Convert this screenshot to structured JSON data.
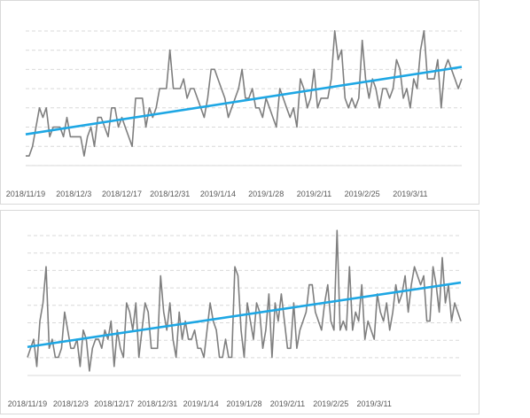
{
  "chart_data": [
    {
      "type": "line",
      "x_tick_labels": [
        "2018/11/19",
        "2018/12/3",
        "2018/12/17",
        "2018/12/31",
        "2019/1/14",
        "2019/1/28",
        "2019/2/11",
        "2019/2/25",
        "2019/3/11"
      ],
      "x_tick_days": [
        0,
        14,
        28,
        42,
        56,
        70,
        84,
        98,
        112
      ],
      "ylim": [
        0,
        16
      ],
      "grid": true,
      "series": [
        {
          "role": "data",
          "color": "#7f7f7f",
          "values": [
            1,
            1,
            2,
            4,
            6,
            5,
            6,
            3,
            4,
            4,
            4,
            3,
            5,
            3,
            3,
            3,
            3,
            1,
            3,
            4,
            2,
            5,
            5,
            4,
            3,
            6,
            6,
            4,
            5,
            4,
            3,
            2,
            7,
            7,
            7,
            4,
            6,
            5,
            6,
            8,
            8,
            8,
            12,
            8,
            8,
            8,
            9,
            7,
            8,
            8,
            7,
            6,
            5,
            7,
            10,
            10,
            9,
            8,
            7,
            5,
            6,
            7,
            8,
            10,
            7,
            7,
            8,
            6,
            6,
            5,
            7,
            6,
            5,
            4,
            8,
            7,
            6,
            5,
            6,
            4,
            9,
            8,
            6,
            7,
            10,
            6,
            7,
            7,
            7,
            9,
            14,
            11,
            12,
            7,
            6,
            7,
            6,
            7,
            13,
            9,
            7,
            9,
            8,
            6,
            8,
            8,
            7,
            8,
            11,
            10,
            7,
            8,
            6,
            9,
            8,
            12,
            14,
            9,
            9,
            9,
            11,
            6,
            10,
            11,
            10,
            9,
            8,
            9
          ]
        },
        {
          "role": "trendline",
          "color": "#1ea7e4",
          "start": 3.25,
          "end": 10.25
        }
      ]
    },
    {
      "type": "line",
      "x_tick_labels": [
        "2018/11/19",
        "2018/12/3",
        "2018/12/17",
        "2018/12/31",
        "2019/1/14",
        "2019/1/28",
        "2019/2/11",
        "2019/2/25",
        "2019/3/11"
      ],
      "x_tick_days": [
        0,
        14,
        28,
        42,
        56,
        70,
        84,
        98,
        112
      ],
      "ylim": [
        0,
        17
      ],
      "grid": true,
      "series": [
        {
          "role": "data",
          "color": "#7f7f7f",
          "values": [
            2,
            3,
            4,
            1,
            6,
            8,
            12,
            3,
            4,
            2,
            2,
            3,
            7,
            5,
            3,
            3,
            4,
            1,
            5,
            4,
            0.5,
            3,
            4,
            4,
            3,
            5,
            4,
            6,
            1,
            5,
            3,
            2,
            8,
            7,
            5,
            8,
            2,
            5,
            8,
            7,
            3,
            3,
            3,
            11,
            7,
            5,
            8,
            4,
            2,
            7,
            4,
            6,
            4,
            4,
            5,
            3,
            3,
            2,
            5,
            8,
            6,
            5,
            2,
            2,
            4,
            2,
            2,
            12,
            11,
            5,
            2,
            8,
            6,
            4,
            8,
            7,
            3,
            5,
            9,
            2,
            8,
            6,
            9,
            6,
            3,
            3,
            8,
            3,
            5,
            6,
            7,
            10,
            10,
            7,
            6,
            5,
            8,
            10,
            6,
            5,
            16,
            5,
            6,
            5,
            12,
            5,
            7,
            6,
            10,
            4,
            6,
            5,
            4,
            9,
            7,
            6,
            8,
            5,
            7,
            10,
            8,
            9,
            11,
            7,
            10,
            12,
            11,
            10,
            11,
            6,
            6,
            12,
            10,
            7,
            13,
            8,
            10,
            6,
            8,
            7,
            6
          ]
        },
        {
          "role": "trendline",
          "color": "#1ea7e4",
          "start": 3.15,
          "end": 10.25
        }
      ]
    }
  ]
}
